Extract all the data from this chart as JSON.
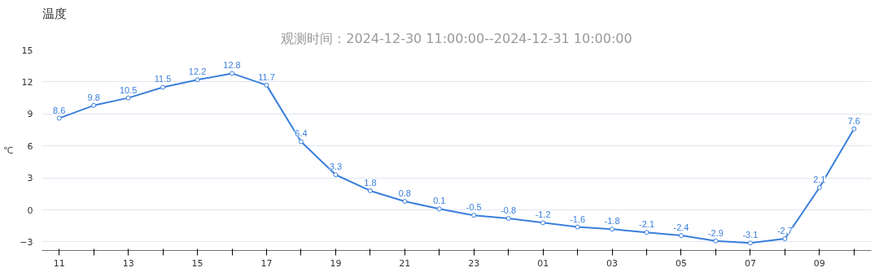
{
  "chart_data": {
    "type": "line",
    "title": "温度",
    "subtitle": "观测时间：2024-12-30 11:00:00--2024-12-31 10:00:00",
    "ylabel": "℃",
    "categories": [
      "11",
      null,
      "13",
      null,
      "15",
      null,
      "17",
      null,
      "19",
      null,
      "21",
      null,
      "23",
      null,
      "01",
      null,
      "03",
      null,
      "05",
      null,
      "07",
      null,
      "09",
      null
    ],
    "series": [
      {
        "color": "#3a7fdc",
        "values": [
          8.6,
          9.8,
          10.5,
          11.5,
          12.2,
          12.8,
          11.7,
          6.4,
          3.3,
          1.8,
          0.8,
          0.1,
          -0.5,
          -0.8,
          -1.2,
          -1.6,
          -1.8,
          -2.1,
          -2.4,
          -2.9,
          -3.1,
          -2.7,
          2.1,
          7.6
        ]
      }
    ],
    "ylim": [
      -3.8,
      15
    ],
    "yticks": [
      -3,
      0,
      3,
      6,
      9,
      12,
      15
    ],
    "grid": "y",
    "marker": "circle",
    "line_style": "solid",
    "data_labels": true
  }
}
